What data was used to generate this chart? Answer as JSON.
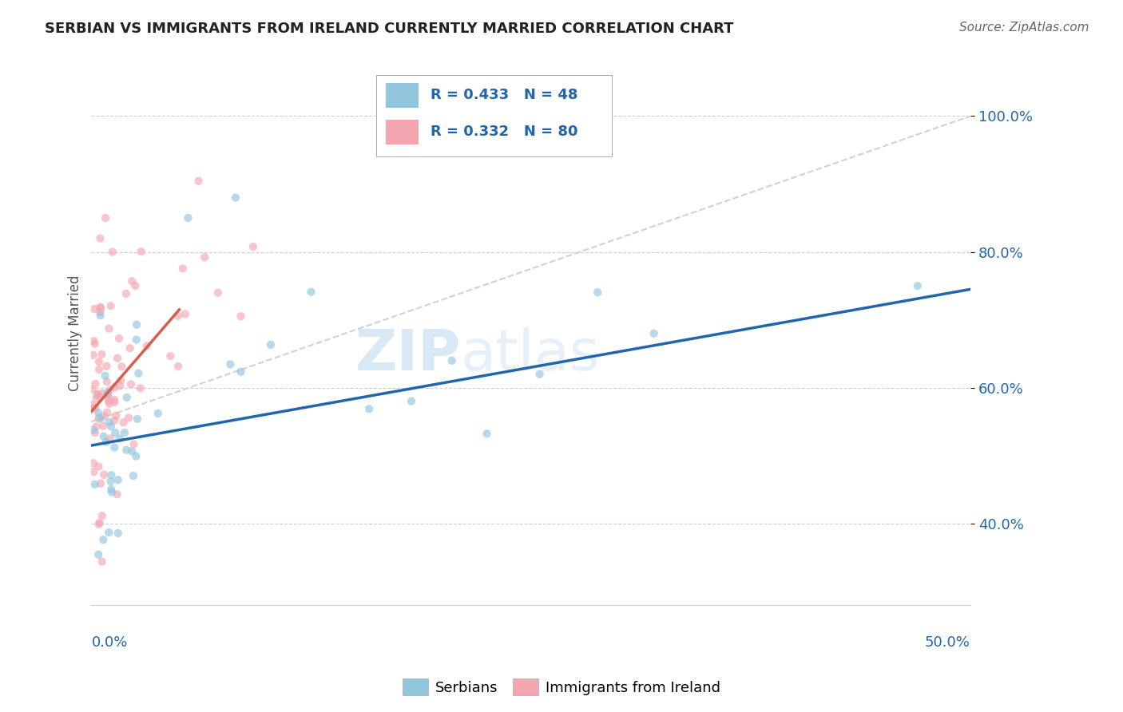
{
  "title": "SERBIAN VS IMMIGRANTS FROM IRELAND CURRENTLY MARRIED CORRELATION CHART",
  "source": "Source: ZipAtlas.com",
  "ylabel_ticks": [
    40.0,
    60.0,
    80.0,
    100.0
  ],
  "xlim": [
    0.0,
    50.0
  ],
  "ylim": [
    28.0,
    108.0
  ],
  "serbian_R": 0.433,
  "serbian_N": 48,
  "ireland_R": 0.332,
  "ireland_N": 80,
  "serbian_color": "#92c5de",
  "ireland_color": "#f4a6b0",
  "serbian_line_color": "#2166ac",
  "ireland_line_color": "#d6604d",
  "ref_line_color": "#cccccc",
  "scatter_alpha": 0.65,
  "scatter_size": 55,
  "serbian_trend_x0": 0.0,
  "serbian_trend_y0": 51.5,
  "serbian_trend_x1": 50.0,
  "serbian_trend_y1": 74.5,
  "ireland_trend_x0": 0.0,
  "ireland_trend_y0": 56.5,
  "ireland_trend_x1": 5.0,
  "ireland_trend_y1": 71.5,
  "ref_x0": 0.0,
  "ref_y0": 55.0,
  "ref_x1": 50.0,
  "ref_y1": 100.0,
  "watermark_zip": "ZIP",
  "watermark_atlas": "atlas",
  "background_color": "#ffffff",
  "grid_color": "#d0d0d0",
  "legend_serbian_text": "R = 0.433   N = 48",
  "legend_ireland_text": "R = 0.332   N = 80",
  "legend_r_color": "#2166ac",
  "legend_n_color": "#2166ac",
  "axis_color": "#2166ac"
}
